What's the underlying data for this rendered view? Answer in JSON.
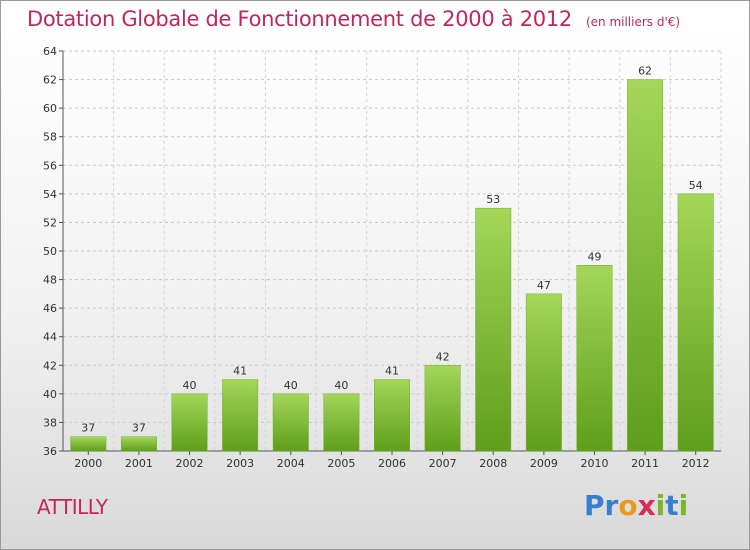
{
  "title": "Dotation Globale de Fonctionnement de 2000 à 2012",
  "unit": "(en milliers d'€)",
  "commune": "ATTILLY",
  "logo": {
    "text": "Proxiti",
    "letters": [
      "P",
      "r",
      "o",
      "x",
      "i",
      "t",
      "i"
    ],
    "colors": [
      "#3a7fcf",
      "#3a7fcf",
      "#e89a1e",
      "#d32f5a",
      "#7ab82e",
      "#3a7fcf",
      "#7ab82e"
    ]
  },
  "colors": {
    "bar_light": "#a4d65a",
    "bar_dark": "#5e9e1a",
    "title": "#c4265a"
  },
  "chart_data": {
    "type": "bar",
    "categories": [
      "2000",
      "2001",
      "2002",
      "2003",
      "2004",
      "2005",
      "2006",
      "2007",
      "2008",
      "2009",
      "2010",
      "2011",
      "2012"
    ],
    "values": [
      37,
      37,
      40,
      41,
      40,
      40,
      41,
      42,
      53,
      47,
      49,
      62,
      54
    ],
    "ylim": [
      36,
      64
    ],
    "yticks": [
      36,
      38,
      40,
      42,
      44,
      46,
      48,
      50,
      52,
      54,
      56,
      58,
      60,
      62,
      64
    ],
    "grid": true,
    "title": "Dotation Globale de Fonctionnement de 2000 à 2012",
    "xlabel": "",
    "ylabel": ""
  }
}
